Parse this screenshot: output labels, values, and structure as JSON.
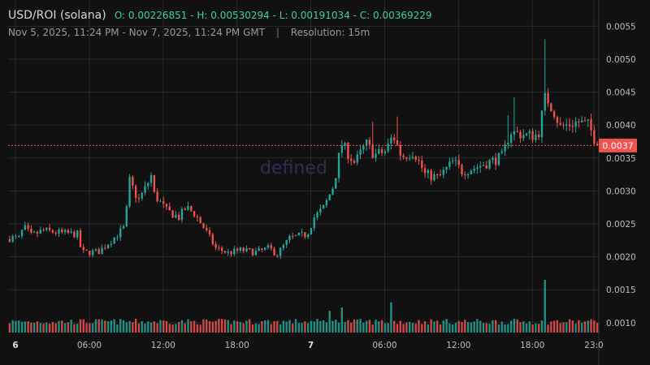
{
  "header": {
    "pair": "USD/ROI (solana)",
    "ohlc": "O: 0.00226851 - H: 0.00530294 - L: 0.00191034 - C: 0.00369229",
    "range": "Nov 5, 2025, 11:24 PM - Nov 7, 2025, 11:24 PM GMT",
    "separator": "|",
    "resolution": "Resolution: 15m"
  },
  "watermark": "defined",
  "colors": {
    "up": "#26a69a",
    "down": "#ef5350",
    "grid": "#2a2a2a",
    "background": "#111111",
    "price_line": "#ef5350"
  },
  "chart_data": {
    "type": "candlestick",
    "y_ticks": [
      "0.0055",
      "0.0050",
      "0.0045",
      "0.0040",
      "0.0035",
      "0.0030",
      "0.0025",
      "0.0020",
      "0.0015",
      "0.0010"
    ],
    "ylim": [
      0.00085,
      0.0058
    ],
    "x_ticks": [
      {
        "label": "6",
        "hour": 0.6,
        "bold": true
      },
      {
        "label": "06:00",
        "hour": 6.6
      },
      {
        "label": "12:00",
        "hour": 12.6
      },
      {
        "label": "18:00",
        "hour": 18.6
      },
      {
        "label": "7",
        "hour": 24.6,
        "bold": true
      },
      {
        "label": "06:00",
        "hour": 30.6
      },
      {
        "label": "12:00",
        "hour": 36.6
      },
      {
        "label": "18:00",
        "hour": 42.6
      },
      {
        "label": "23:0",
        "hour": 47.6
      }
    ],
    "xlim_hours": [
      0,
      48
    ],
    "last_price_label": "0.0037",
    "last_price": 0.00369,
    "open": 0.00226851,
    "high": 0.00530294,
    "low": 0.00191034,
    "close": 0.00369229,
    "price_path": [
      [
        0,
        0.00229
      ],
      [
        1,
        0.00228
      ],
      [
        1.4,
        0.00245
      ],
      [
        2,
        0.00232
      ],
      [
        3,
        0.0024
      ],
      [
        4.5,
        0.00236
      ],
      [
        5.8,
        0.00234
      ],
      [
        6.1,
        0.00206
      ],
      [
        7.5,
        0.00208
      ],
      [
        8.5,
        0.00225
      ],
      [
        9.6,
        0.00245
      ],
      [
        10,
        0.00315
      ],
      [
        10.7,
        0.00285
      ],
      [
        11.3,
        0.00305
      ],
      [
        11.8,
        0.00325
      ],
      [
        12,
        0.00295
      ],
      [
        13,
        0.0027
      ],
      [
        14,
        0.0026
      ],
      [
        14.6,
        0.00275
      ],
      [
        15.3,
        0.00265
      ],
      [
        16,
        0.00245
      ],
      [
        17,
        0.00213
      ],
      [
        18,
        0.00206
      ],
      [
        19,
        0.0021
      ],
      [
        20.3,
        0.00207
      ],
      [
        21.3,
        0.00213
      ],
      [
        22,
        0.00204
      ],
      [
        23,
        0.00228
      ],
      [
        24.4,
        0.00234
      ],
      [
        25,
        0.0026
      ],
      [
        25.8,
        0.00275
      ],
      [
        26.6,
        0.0031
      ],
      [
        27.2,
        0.00372
      ],
      [
        28.3,
        0.00342
      ],
      [
        29.2,
        0.00372
      ],
      [
        29.9,
        0.00355
      ],
      [
        30.8,
        0.0036
      ],
      [
        31.4,
        0.00385
      ],
      [
        32.1,
        0.00352
      ],
      [
        33.1,
        0.0036
      ],
      [
        34,
        0.00325
      ],
      [
        35.1,
        0.0032
      ],
      [
        36.3,
        0.00345
      ],
      [
        37,
        0.0033
      ],
      [
        38,
        0.00335
      ],
      [
        39.4,
        0.00345
      ],
      [
        40.3,
        0.00352
      ],
      [
        40.9,
        0.0039
      ],
      [
        42.3,
        0.00384
      ],
      [
        43.2,
        0.00385
      ],
      [
        43.8,
        0.00445
      ],
      [
        44.5,
        0.0042
      ],
      [
        45,
        0.00397
      ],
      [
        46.4,
        0.00405
      ],
      [
        47.3,
        0.004
      ],
      [
        48,
        0.00369
      ]
    ],
    "spikes": [
      {
        "hour": 43.7,
        "high": 0.00530294
      },
      {
        "hour": 41.2,
        "high": 0.00442
      },
      {
        "hour": 40.7,
        "high": 0.00415
      },
      {
        "hour": 31.7,
        "high": 0.00413
      },
      {
        "hour": 29.7,
        "high": 0.00405
      }
    ],
    "volume_scale": [
      0,
      0.0016
    ],
    "volume_spikes": [
      {
        "hour": 43.6,
        "value": 0.00072
      },
      {
        "hour": 25.0,
        "value": 0.00042
      },
      {
        "hour": 31.2,
        "value": 0.00038
      },
      {
        "hour": 27.2,
        "value": 0.0003
      },
      {
        "hour": 26.1,
        "value": 0.00025
      },
      {
        "hour": 45.0,
        "value": 0.00022
      }
    ]
  }
}
